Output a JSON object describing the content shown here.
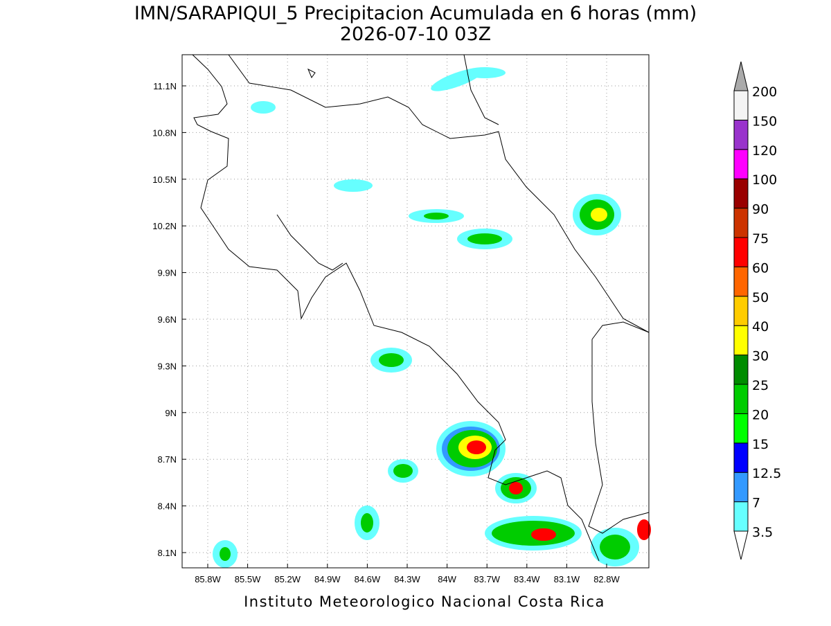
{
  "map": {
    "title": "IMN/SARAPIQUI_5 Precipitacion Acumulada en 6 horas (mm)",
    "subtitle": "2026-07-10 03Z",
    "lat_ticks": [
      "11.1N",
      "10.8N",
      "10.5N",
      "10.2N",
      "9.9N",
      "9.6N",
      "9.3N",
      "9N",
      "8.7N",
      "8.4N",
      "8.1N"
    ],
    "lon_ticks": [
      "85.8W",
      "85.5W",
      "85.2W",
      "84.9W",
      "84.6W",
      "84.3W",
      "84W",
      "83.7W",
      "83.4W",
      "83.1W",
      "82.8W"
    ],
    "colorbar": {
      "labels": [
        "3.5",
        "7",
        "12.5",
        "15",
        "20",
        "25",
        "30",
        "40",
        "50",
        "60",
        "75",
        "90",
        "100",
        "120",
        "150",
        "200"
      ],
      "colors": [
        "#66ffff",
        "#3399ff",
        "#0000ff",
        "#00ff00",
        "#00cc00",
        "#008c00",
        "#ffff00",
        "#ffcc00",
        "#ff6600",
        "#ff0000",
        "#cc3300",
        "#990000",
        "#ff00ff",
        "#9933cc",
        "#f4f4f4"
      ],
      "under_color": "#ffffff",
      "over_color": "#aaaaaa"
    },
    "footer": "Instituto Meteorologico Nacional Costa Rica"
  }
}
